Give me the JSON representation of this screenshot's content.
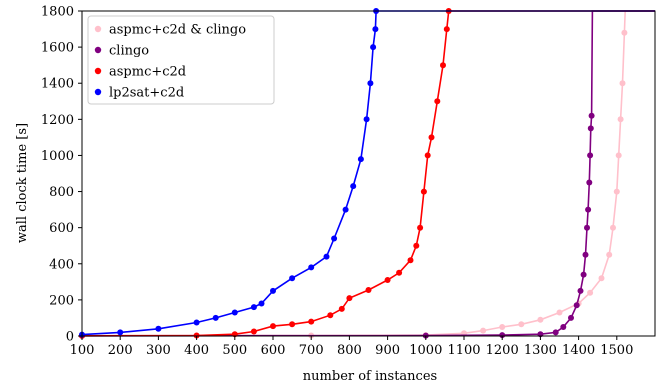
{
  "chart_data": {
    "type": "line",
    "xlabel": "number of instances",
    "ylabel": "wall clock time [s]",
    "xlim": [
      100,
      1600
    ],
    "ylim": [
      0,
      1800
    ],
    "x_ticks": [
      100,
      200,
      300,
      400,
      500,
      600,
      700,
      800,
      900,
      1000,
      1100,
      1200,
      1300,
      1400,
      1500
    ],
    "x_tick_labels": [
      "100",
      "200",
      "300",
      "400",
      "500",
      "600",
      "700",
      "800",
      "900",
      "1000",
      "1100",
      "1200",
      "1300",
      "1400",
      "1500"
    ],
    "y_ticks": [
      0,
      200,
      400,
      600,
      800,
      1000,
      1200,
      1400,
      1600,
      1800
    ],
    "y_tick_labels": [
      "0",
      "200",
      "400",
      "600",
      "800",
      "1000",
      "1200",
      "1400",
      "1600",
      "1800"
    ],
    "legend_position": "top-left",
    "series": [
      {
        "name": "aspmc+c2d & clingo",
        "color": "#ffc0cb",
        "points": [
          [
            100,
            1
          ],
          [
            700,
            3
          ],
          [
            1000,
            5
          ],
          [
            1100,
            15
          ],
          [
            1150,
            30
          ],
          [
            1200,
            50
          ],
          [
            1250,
            65
          ],
          [
            1300,
            90
          ],
          [
            1350,
            130
          ],
          [
            1400,
            180
          ],
          [
            1430,
            240
          ],
          [
            1460,
            320
          ],
          [
            1480,
            450
          ],
          [
            1490,
            600
          ],
          [
            1500,
            800
          ],
          [
            1505,
            1000
          ],
          [
            1510,
            1200
          ],
          [
            1515,
            1400
          ],
          [
            1520,
            1680
          ],
          [
            1522,
            1800
          ],
          [
            1600,
            1800
          ]
        ]
      },
      {
        "name": "clingo",
        "color": "#800080",
        "points": [
          [
            100,
            1
          ],
          [
            1000,
            2
          ],
          [
            1200,
            5
          ],
          [
            1300,
            10
          ],
          [
            1340,
            20
          ],
          [
            1360,
            50
          ],
          [
            1380,
            100
          ],
          [
            1395,
            170
          ],
          [
            1405,
            250
          ],
          [
            1413,
            340
          ],
          [
            1418,
            450
          ],
          [
            1422,
            600
          ],
          [
            1425,
            700
          ],
          [
            1428,
            850
          ],
          [
            1430,
            1000
          ],
          [
            1432,
            1150
          ],
          [
            1434,
            1220
          ],
          [
            1436,
            1800
          ],
          [
            1600,
            1800
          ]
        ]
      },
      {
        "name": "aspmc+c2d",
        "color": "#ff0000",
        "points": [
          [
            100,
            1
          ],
          [
            400,
            3
          ],
          [
            500,
            10
          ],
          [
            550,
            25
          ],
          [
            600,
            55
          ],
          [
            650,
            65
          ],
          [
            700,
            80
          ],
          [
            750,
            115
          ],
          [
            780,
            150
          ],
          [
            800,
            210
          ],
          [
            850,
            255
          ],
          [
            900,
            310
          ],
          [
            930,
            350
          ],
          [
            960,
            420
          ],
          [
            975,
            500
          ],
          [
            985,
            600
          ],
          [
            995,
            800
          ],
          [
            1005,
            1000
          ],
          [
            1015,
            1100
          ],
          [
            1030,
            1300
          ],
          [
            1045,
            1500
          ],
          [
            1055,
            1700
          ],
          [
            1060,
            1800
          ],
          [
            1600,
            1800
          ]
        ]
      },
      {
        "name": "lp2sat+c2d",
        "color": "#0000ff",
        "points": [
          [
            100,
            8
          ],
          [
            200,
            20
          ],
          [
            300,
            40
          ],
          [
            400,
            75
          ],
          [
            450,
            100
          ],
          [
            500,
            130
          ],
          [
            550,
            160
          ],
          [
            570,
            180
          ],
          [
            600,
            250
          ],
          [
            650,
            320
          ],
          [
            700,
            380
          ],
          [
            740,
            440
          ],
          [
            760,
            540
          ],
          [
            790,
            700
          ],
          [
            810,
            830
          ],
          [
            830,
            980
          ],
          [
            845,
            1200
          ],
          [
            855,
            1400
          ],
          [
            862,
            1600
          ],
          [
            868,
            1700
          ],
          [
            870,
            1800
          ],
          [
            1600,
            1800
          ]
        ]
      }
    ]
  }
}
